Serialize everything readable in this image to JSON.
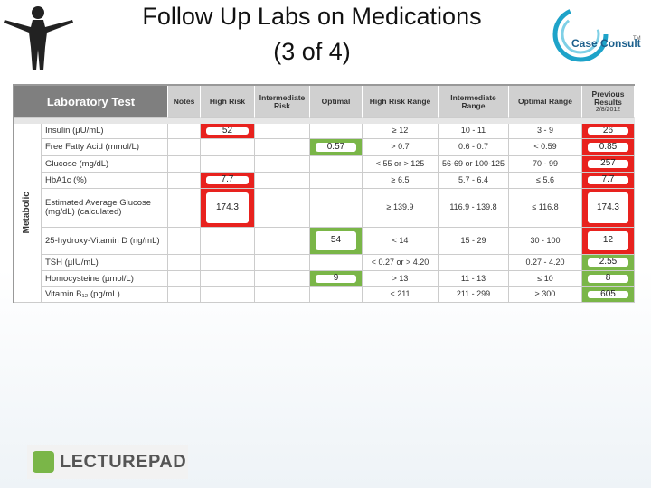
{
  "header": {
    "title_line1": "Follow Up Labs on Medications",
    "title_line2": "(3 of 4)",
    "logo": "Case Consult",
    "logo_tm": "TM"
  },
  "table": {
    "first_header": "Laboratory Test",
    "headers": [
      "Notes",
      "High Risk",
      "Intermediate Risk",
      "Optimal",
      "High Risk Range",
      "Intermediate Range",
      "Optimal Range",
      "Previous Results"
    ],
    "previous_date": "2/8/2012",
    "group": "Metabolic",
    "rows": [
      {
        "test": "Insulin (µU/mL)",
        "cells": [
          null,
          {
            "text": "52",
            "color": "#e8221e"
          },
          null,
          null,
          "≥ 12",
          "10 - 11",
          "3 - 9",
          {
            "text": "26",
            "color": "#e8221e"
          }
        ]
      },
      {
        "test": "Free Fatty Acid (mmol/L)",
        "cells": [
          null,
          null,
          null,
          {
            "text": "0.57",
            "color": "#7ab648"
          },
          "> 0.7",
          "0.6 - 0.7",
          "< 0.59",
          {
            "text": "0.85",
            "color": "#e8221e"
          }
        ]
      },
      {
        "test": "Glucose (mg/dL)",
        "cells": [
          null,
          null,
          null,
          null,
          "< 55 or > 125",
          "56-69 or 100-125",
          "70 - 99",
          {
            "text": "257",
            "color": "#e8221e"
          }
        ]
      },
      {
        "test": "HbA1c (%)",
        "cells": [
          null,
          {
            "text": "7.7",
            "color": "#e8221e"
          },
          null,
          null,
          "≥ 6.5",
          "5.7 - 6.4",
          "≤ 5.6",
          {
            "text": "7.7",
            "color": "#e8221e"
          }
        ]
      },
      {
        "test": "Estimated Average Glucose (mg/dL) (calculated)",
        "cells": [
          null,
          {
            "text": "174.3",
            "color": "#e8221e"
          },
          null,
          null,
          "≥ 139.9",
          "116.9 - 139.8",
          "≤ 116.8",
          {
            "text": "174.3",
            "color": "#e8221e"
          }
        ]
      },
      {
        "test": "25-hydroxy-Vitamin D (ng/mL)",
        "cells": [
          null,
          null,
          null,
          {
            "text": "54",
            "color": "#7ab648"
          },
          "< 14",
          "15 - 29",
          "30 - 100",
          {
            "text": "12",
            "color": "#e8221e"
          }
        ]
      },
      {
        "test": "TSH (µIU/mL)",
        "cells": [
          null,
          null,
          null,
          null,
          "< 0.27 or > 4.20",
          null,
          "0.27 - 4.20",
          {
            "text": "2.55",
            "color": "#7ab648"
          }
        ]
      },
      {
        "test": "Homocysteine (µmol/L)",
        "cells": [
          null,
          null,
          null,
          {
            "text": "9",
            "color": "#7ab648"
          },
          "> 13",
          "11 - 13",
          "≤ 10",
          {
            "text": "8",
            "color": "#7ab648"
          }
        ]
      },
      {
        "test": "Vitamin B₁₂ (pg/mL)",
        "cells": [
          null,
          null,
          null,
          null,
          "< 211",
          "211 - 299",
          "≥ 300",
          {
            "text": "605",
            "color": "#7ab648"
          }
        ]
      }
    ]
  },
  "footer": {
    "logo": "LECTUREPAD"
  }
}
